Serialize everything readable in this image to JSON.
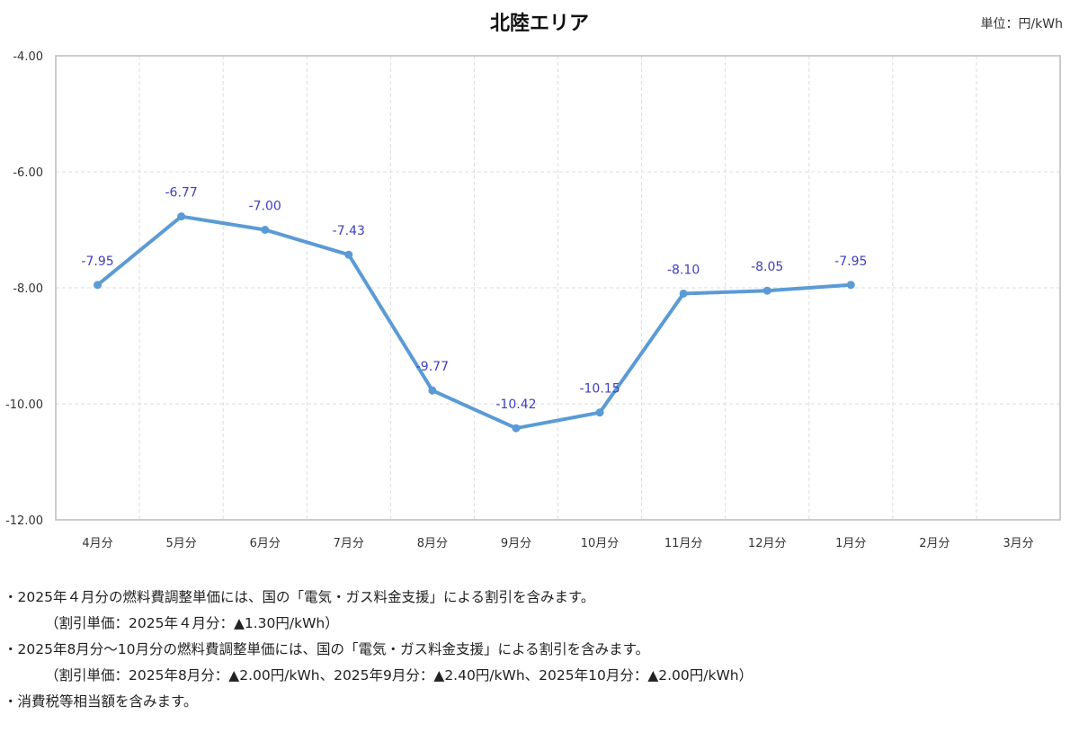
{
  "chart_data": {
    "type": "line",
    "title": "北陸エリア",
    "unit_label": "単位：円/kWh",
    "categories": [
      "4月分",
      "5月分",
      "6月分",
      "7月分",
      "8月分",
      "9月分",
      "10月分",
      "11月分",
      "12月分",
      "1月分",
      "2月分",
      "3月分"
    ],
    "series": [
      {
        "name": "燃料費調整単価",
        "values": [
          -7.95,
          -6.77,
          -7.0,
          -7.43,
          -9.77,
          -10.42,
          -10.15,
          -8.1,
          -8.05,
          -7.95,
          null,
          null
        ]
      }
    ],
    "data_labels": [
      "-7.95",
      "-6.77",
      "-7.00",
      "-7.43",
      "-9.77",
      "-10.42",
      "-10.15",
      "-8.10",
      "-8.05",
      "-7.95"
    ],
    "ylim": [
      -12,
      -4
    ],
    "yticks": [
      -4,
      -6,
      -8,
      -10,
      -12
    ],
    "ytick_labels": [
      "-4.00",
      "-6.00",
      "-8.00",
      "-10.00",
      "-12.00"
    ],
    "grid": true,
    "xlabel": "",
    "ylabel": "",
    "colors": {
      "line": "#5b9bd5",
      "label": "#3f3fbf"
    }
  },
  "notes": [
    "・2025年４月分の燃料費調整単価には、国の「電気・ガス料金支援」による割引を含みます。",
    "（割引単価：2025年４月分：▲1.30円/kWh）",
    "・2025年8月分～10月分の燃料費調整単価には、国の「電気・ガス料金支援」による割引を含みます。",
    "（割引単価：2025年8月分：▲2.00円/kWh、2025年9月分：▲2.40円/kWh、2025年10月分：▲2.00円/kWh）",
    "・消費税等相当額を含みます。"
  ]
}
